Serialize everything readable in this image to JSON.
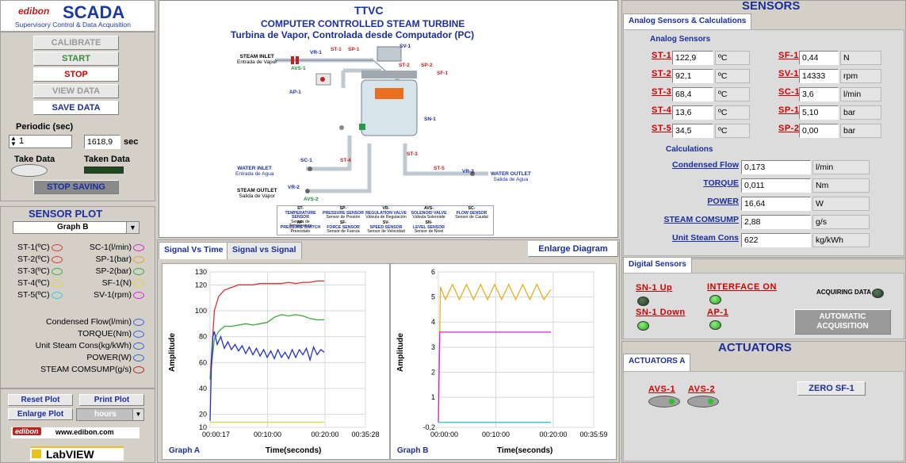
{
  "brand": {
    "logo": "edibon",
    "title": "SCADA",
    "subtitle": "Supervisory Control & Data Acquisition"
  },
  "controls": {
    "calibrate": "CALIBRATE",
    "start": "START",
    "stop": "STOP",
    "view_data": "VIEW DATA",
    "save_data": "SAVE DATA"
  },
  "periodic": {
    "label": "Periodic (sec)",
    "value": "1",
    "elapsed": "1618,9",
    "unit": "sec",
    "take_data": "Take Data",
    "taken_data": "Taken Data",
    "stop_saving": "STOP SAVING"
  },
  "sensor_plot": {
    "title": "SENSOR PLOT",
    "graph_select": "Graph B",
    "left": [
      "ST-1(ºC)",
      "ST-2(ºC)",
      "ST-3(ºC)",
      "ST-4(ºC)",
      "ST-5(ºC)"
    ],
    "right": [
      "SC-1(l/min)",
      "SP-1(bar)",
      "SP-2(bar)",
      "SF-1(N)",
      "SV-1(rpm)"
    ],
    "calc": [
      "Condensed Flow(l/min)",
      "TORQUE(Nm)",
      "Unit Steam Cons(kg/kWh)",
      "POWER(W)",
      "STEAM COMSUMP(g/s)"
    ],
    "left_colors": [
      "#e03030",
      "#e03030",
      "#3aa83a",
      "#e8d040",
      "#30c8d8"
    ],
    "right_colors": [
      "#d820d8",
      "#e8a020",
      "#3aa83a",
      "#e8d040",
      "#d820d8"
    ],
    "calc_colors": [
      "#3060e0",
      "#3060e0",
      "#3060e0",
      "#3060e0",
      "#c02020"
    ]
  },
  "bottom_buttons": {
    "reset": "Reset Plot",
    "print": "Print Plot",
    "enlarge": "Enlarge Plot",
    "units": "hours"
  },
  "footer": {
    "web": "www.edibon.com",
    "labview": "LabVIEW"
  },
  "diagram": {
    "title": "TTVC",
    "subtitle": "COMPUTER CONTROLLED STEAM TURBINE",
    "subtitle_es": "Turbina de Vapor, Controlada desde Computador (PC)",
    "steam_inlet": "STEAM INLET",
    "steam_inlet_es": "Entrada de Vapor",
    "water_inlet": "WATER INLET",
    "water_inlet_es": "Entrada de Agua",
    "steam_outlet": "STEAM OUTLET",
    "steam_outlet_es": "Salida de Vapor",
    "water_outlet": "WATER OUTLET",
    "water_outlet_es": "Salida de Agua",
    "tags": {
      "vr1": "VR-1",
      "st1": "ST-1",
      "sp1": "SP-1",
      "sv1": "SV-1",
      "avs1": "AVS-1",
      "st2": "ST-2",
      "sp2": "SP-2",
      "sf1": "SF-1",
      "ap1": "AP-1",
      "sn1": "SN-1",
      "sc1": "SC-1",
      "st4": "ST-4",
      "st3": "ST-3",
      "st5": "ST-5",
      "vr3": "VR-3",
      "vr2": "VR-2",
      "avs2": "AVS-2"
    },
    "legend": [
      {
        "code": "ST-",
        "name": "TEMPERATURE SENSOR",
        "es": "Sensor de Temperatura"
      },
      {
        "code": "SP-",
        "name": "PRESSURE SENSOR",
        "es": "Sensor de Presión"
      },
      {
        "code": "VR-",
        "name": "REGULATION VALVE",
        "es": "Válvula de Regulación"
      },
      {
        "code": "AVS-",
        "name": "SOLENOID VALVE",
        "es": "Válvula Solenoide"
      },
      {
        "code": "SC-",
        "name": "FLOW SENSOR",
        "es": "Sensor de Caudal"
      },
      {
        "code": "AP-",
        "name": "PRESSURE SWITCH",
        "es": "Presostato"
      },
      {
        "code": "SF-",
        "name": "FORCE SENSOR",
        "es": "Sensor de Fuerza"
      },
      {
        "code": "SV-",
        "name": "SPEED SENSOR",
        "es": "Sensor de Velocidad"
      },
      {
        "code": "SN-",
        "name": "LEVEL SENSOR",
        "es": "Sensor de Nivel"
      }
    ]
  },
  "tabs": {
    "signal_time": "Signal Vs Time",
    "signal_signal": "Signal vs Signal",
    "enlarge": "Enlarge Diagram"
  },
  "graph_a": {
    "label": "Graph A",
    "xlabel": "Time(seconds)",
    "ylabel": "Amplitude"
  },
  "graph_b": {
    "label": "Graph B",
    "xlabel": "Time(seconds)",
    "ylabel": "Amplitude"
  },
  "sensors": {
    "title": "SENSORS",
    "tab": "Analog Sensors & Calculations",
    "analog_title": "Analog Sensors",
    "left": [
      {
        "tag": "ST-1",
        "value": "122,9",
        "unit": "ºC"
      },
      {
        "tag": "ST-2",
        "value": "92,1",
        "unit": "ºC"
      },
      {
        "tag": "ST-3",
        "value": "68,4",
        "unit": "ºC"
      },
      {
        "tag": "ST-4",
        "value": "13,6",
        "unit": "ºC"
      },
      {
        "tag": "ST-5",
        "value": "34,5",
        "unit": "ºC"
      }
    ],
    "right": [
      {
        "tag": "SF-1",
        "value": "0,44",
        "unit": "N"
      },
      {
        "tag": "SV-1",
        "value": "14333",
        "unit": "rpm"
      },
      {
        "tag": "SC-1",
        "value": "3,6",
        "unit": "l/min"
      },
      {
        "tag": "SP-1",
        "value": "5,10",
        "unit": "bar"
      },
      {
        "tag": "SP-2",
        "value": "0,00",
        "unit": "bar"
      }
    ],
    "calc_title": "Calculations",
    "calc": [
      {
        "label": "Condensed Flow",
        "value": "0,173",
        "unit": "l/min"
      },
      {
        "label": "TORQUE",
        "value": "0,011",
        "unit": "Nm"
      },
      {
        "label": "POWER",
        "value": "16,64",
        "unit": "W"
      },
      {
        "label": "STEAM COMSUMP",
        "value": "2,88",
        "unit": "g/s"
      },
      {
        "label": "Unit Steam Cons",
        "value": "622",
        "unit": "kg/kWh"
      }
    ]
  },
  "digital": {
    "tab": "Digital Sensors",
    "sn1_up": "SN-1 Up",
    "sn1_down": "SN-1 Down",
    "interface_on": "INTERFACE ON",
    "ap1": "AP-1",
    "acquiring": "ACQUIRING DATA",
    "auto": "AUTOMATIC ACQUISITION"
  },
  "actuators": {
    "title": "ACTUATORS",
    "tab": "ACTUATORS A",
    "avs1": "AVS-1",
    "avs2": "AVS-2",
    "zero": "ZERO SF-1"
  },
  "chart_data": [
    {
      "type": "line",
      "title": "",
      "xlabel": "Time(seconds)",
      "ylabel": "Amplitude",
      "ylim": [
        10,
        130
      ],
      "xticks": [
        "00:00:17",
        "00:10:00",
        "00:20:00",
        "00:35:28"
      ],
      "yticks": [
        10,
        20,
        40,
        60,
        80,
        100,
        120,
        130
      ],
      "series": [
        {
          "color": "#e03030",
          "x": [
            0,
            60,
            120,
            200,
            300,
            400,
            500,
            600,
            700,
            800,
            900,
            1000,
            1100,
            1200,
            1300,
            1400,
            1500,
            1600
          ],
          "y": [
            47,
            100,
            111,
            116,
            118,
            120,
            120,
            120,
            121,
            121,
            121,
            121,
            122,
            121,
            122,
            122,
            123,
            123
          ]
        },
        {
          "color": "#3aa83a",
          "x": [
            0,
            60,
            120,
            200,
            300,
            400,
            500,
            600,
            700,
            800,
            900,
            1000,
            1100,
            1200,
            1300,
            1400,
            1500,
            1600
          ],
          "y": [
            47,
            78,
            84,
            88,
            88,
            89,
            90,
            89,
            90,
            91,
            95,
            97,
            96,
            97,
            96,
            94,
            93,
            93
          ]
        },
        {
          "color": "#2030d8",
          "x": [
            0,
            20,
            40,
            60,
            100,
            150,
            200,
            250,
            300,
            350,
            400,
            450,
            500,
            550,
            600,
            650,
            700,
            750,
            800,
            850,
            900,
            950,
            1000,
            1050,
            1100,
            1150,
            1200,
            1250,
            1300,
            1350,
            1400,
            1450,
            1500,
            1550,
            1600
          ],
          "y": [
            15,
            60,
            80,
            84,
            74,
            80,
            71,
            76,
            70,
            74,
            69,
            73,
            67,
            72,
            66,
            71,
            65,
            70,
            64,
            69,
            63,
            70,
            64,
            68,
            63,
            70,
            64,
            70,
            66,
            71,
            62,
            72,
            66,
            70,
            68
          ]
        },
        {
          "color": "#e8d040",
          "x": [
            0,
            1600
          ],
          "y": [
            14,
            14
          ]
        }
      ]
    },
    {
      "type": "line",
      "title": "",
      "xlabel": "Time(seconds)",
      "ylabel": "Amplitude",
      "ylim": [
        -0.2,
        6
      ],
      "xticks": [
        "00:00:00",
        "00:10:00",
        "00:20:00",
        "00:35:59"
      ],
      "yticks": [
        -0.2,
        1,
        2,
        3,
        4,
        5,
        6
      ],
      "series": [
        {
          "color": "#e8b020",
          "x": [
            0,
            30,
            100,
            200,
            300,
            400,
            500,
            600,
            700,
            800,
            900,
            1000,
            1100,
            1200,
            1300,
            1400,
            1500,
            1600
          ],
          "y": [
            0,
            5.4,
            4.9,
            5.5,
            4.9,
            5.5,
            4.9,
            5.5,
            4.9,
            5.5,
            4.9,
            5.5,
            4.9,
            5.5,
            4.9,
            5.5,
            4.9,
            5.3
          ]
        },
        {
          "color": "#d820d8",
          "x": [
            0,
            20,
            1600
          ],
          "y": [
            0,
            3.6,
            3.6
          ]
        },
        {
          "color": "#30c8c8",
          "x": [
            0,
            30,
            1600
          ],
          "y": [
            0,
            0,
            0
          ]
        }
      ]
    }
  ]
}
